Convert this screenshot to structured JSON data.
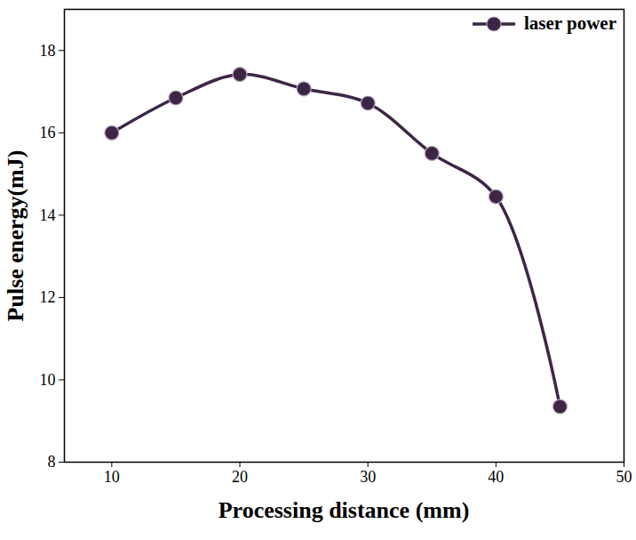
{
  "chart_data": {
    "type": "line",
    "x_label": "Processing distance (mm)",
    "y_label": "Pulse energy(mJ)",
    "x": [
      10,
      15,
      20,
      25,
      30,
      35,
      40,
      45
    ],
    "series": [
      {
        "name": "laser power",
        "color": "#3d2645",
        "marker": "circle",
        "line_style": "solid",
        "values": [
          16.0,
          16.85,
          17.42,
          17.07,
          16.72,
          15.5,
          14.45,
          9.35
        ]
      }
    ],
    "xlim": [
      6.3,
      50
    ],
    "xticks": [
      10,
      20,
      30,
      40,
      50
    ],
    "ylim": [
      8,
      19
    ],
    "yticks": [
      8,
      10,
      12,
      14,
      16,
      18
    ],
    "grid": false,
    "legend": "top-right"
  }
}
